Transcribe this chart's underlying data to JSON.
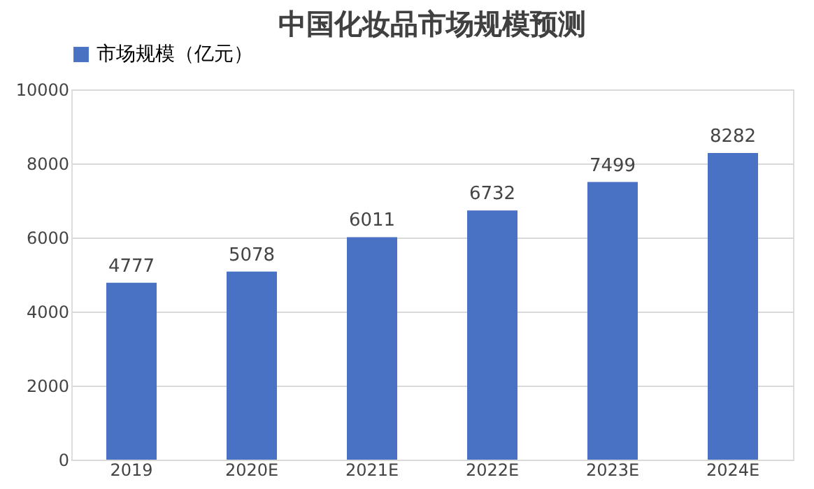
{
  "chart_data": {
    "type": "bar",
    "title": "中国化妆品市场规模预测",
    "categories": [
      "2019",
      "2020E",
      "2021E",
      "2022E",
      "2023E",
      "2024E"
    ],
    "series": [
      {
        "name": "市场规模（亿元）",
        "color": "#4a72c4",
        "values": [
          4777,
          5078,
          6011,
          6732,
          7499,
          8282
        ]
      }
    ],
    "ylim": [
      0,
      10000
    ],
    "yticks": [
      0,
      2000,
      4000,
      6000,
      8000,
      10000
    ],
    "grid": "y",
    "legend": "top",
    "data_labels": true
  }
}
